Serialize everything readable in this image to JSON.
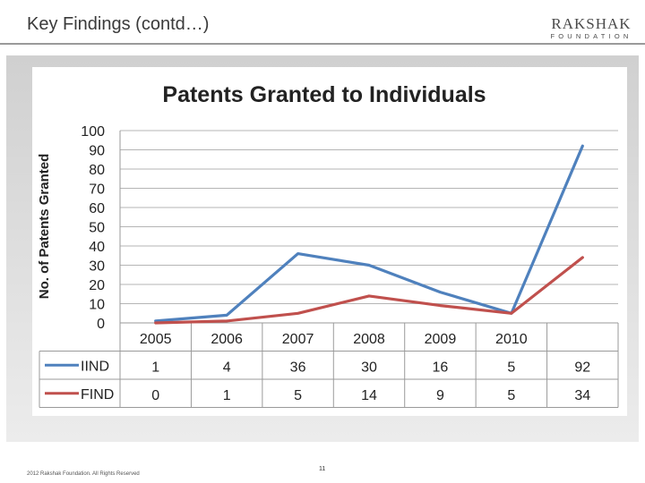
{
  "slide": {
    "title": "Key Findings (contd…)",
    "page_number": "11",
    "footer": "2012 Rakshak Foundation. All Rights Reserved"
  },
  "logo": {
    "main": "RAKSHAK",
    "sub": "FOUNDATION"
  },
  "chart_data": {
    "type": "line",
    "title": "Patents Granted to Individuals",
    "ylabel": "No. of Patents Granted",
    "xlabel": "",
    "categories": [
      "2005",
      "2006",
      "2007",
      "2008",
      "2009",
      "2010",
      ""
    ],
    "ylim": [
      0,
      100
    ],
    "yticks": [
      0,
      10,
      20,
      30,
      40,
      50,
      60,
      70,
      80,
      90,
      100
    ],
    "grid": true,
    "legend": "data-table",
    "series": [
      {
        "name": "IIND",
        "color": "#4f81bd",
        "values": [
          1,
          4,
          36,
          30,
          16,
          5,
          92
        ]
      },
      {
        "name": "FIND",
        "color": "#c0504d",
        "values": [
          0,
          1,
          5,
          14,
          9,
          5,
          34
        ]
      }
    ]
  }
}
